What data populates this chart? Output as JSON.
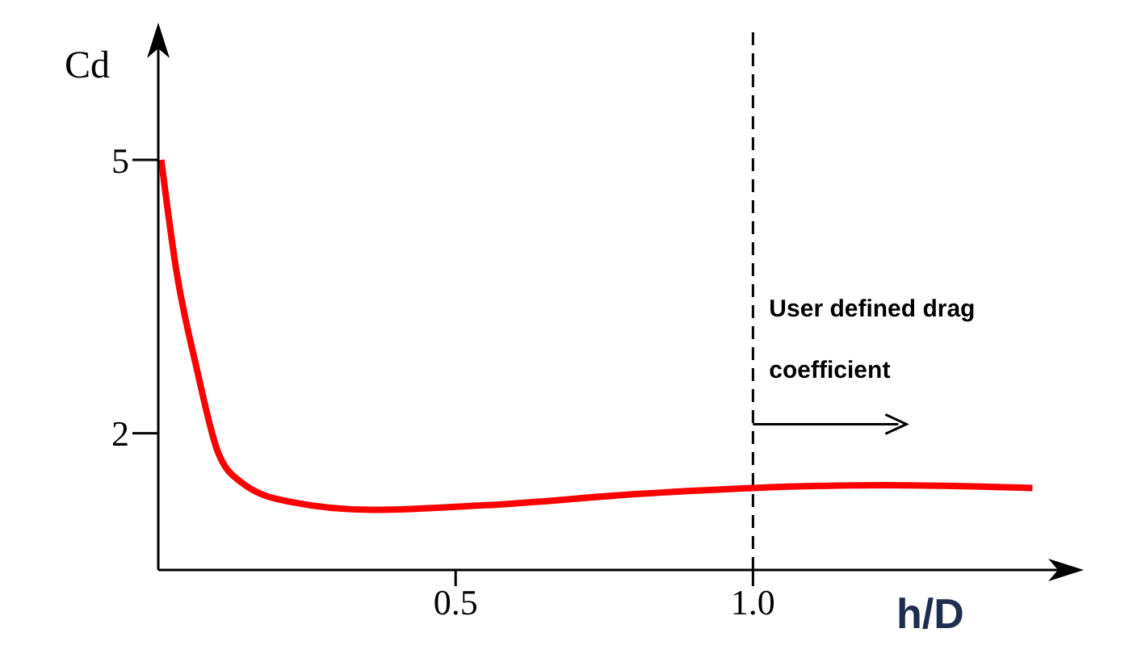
{
  "chart_data": {
    "type": "line",
    "xlabel": "h/D",
    "ylabel": "Cd",
    "annotations": [
      "User defined drag coefficient"
    ],
    "series": [
      {
        "color": "#ff0000",
        "x": [
          0.005,
          0.03,
          0.065,
          0.1,
          0.14,
          0.22,
          0.36,
          0.55,
          0.82,
          1.0,
          1.22,
          1.47
        ],
        "values": [
          5.0,
          3.8,
          2.7,
          1.8,
          1.46,
          1.25,
          1.16,
          1.21,
          1.34,
          1.4,
          1.43,
          1.4
        ]
      }
    ],
    "xlim": [
      0,
      1.54
    ],
    "ylim": [
      0.5,
      6.4
    ],
    "xticks": [
      0.5,
      {
        "value": 1.0,
        "label": "1.0"
      }
    ],
    "yticks": [
      2,
      5
    ],
    "ref_lines": [
      {
        "axis": "x",
        "value": 1.0,
        "color": "#000000",
        "line_style": "dashed"
      }
    ],
    "grid": false,
    "legend": false,
    "marker": "none",
    "line_style": "solid"
  }
}
